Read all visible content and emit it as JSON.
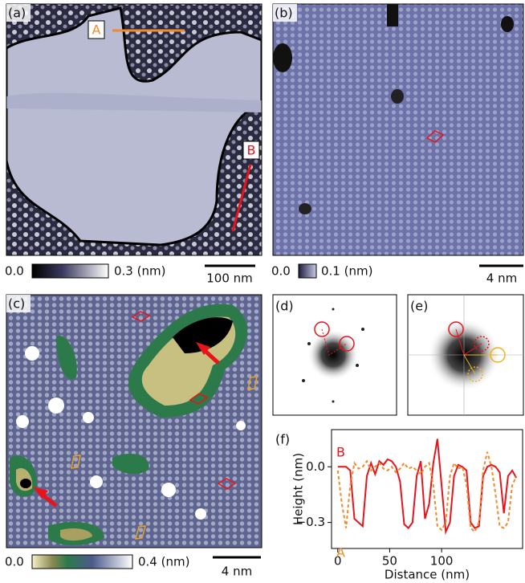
{
  "panels": {
    "a": {
      "label": "(a)",
      "line_a": "A",
      "line_b": "B",
      "colorbar_min": "0.0",
      "colorbar_max": "0.3 (nm)",
      "scale_bar": "100 nm"
    },
    "b": {
      "label": "(b)",
      "colorbar_min": "0.0",
      "colorbar_max": "0.1 (nm)",
      "scale_bar": "4 nm"
    },
    "c": {
      "label": "(c)",
      "colorbar_min": "0.0",
      "colorbar_max": "0.4 (nm)",
      "scale_bar": "4 nm"
    },
    "d": {
      "label": "(d)"
    },
    "e": {
      "label": "(e)"
    }
  },
  "chart_data": {
    "type": "line",
    "label": "(f)",
    "xlabel": "Distance (nm)",
    "ylabel": "Height (nm)",
    "xlim": [
      -6,
      178
    ],
    "ylim": [
      -0.44,
      0.2
    ],
    "xticks": [
      0,
      50,
      100
    ],
    "yticks": [
      {
        "value": 0,
        "label": "0.0"
      },
      {
        "value": -0.3,
        "label": "−0.3"
      }
    ],
    "x": [
      0,
      4,
      8,
      12,
      16,
      20,
      24,
      28,
      32,
      36,
      40,
      44,
      48,
      52,
      56,
      60,
      64,
      68,
      72,
      76,
      80,
      84,
      88,
      92,
      96,
      100,
      104,
      108,
      112,
      116,
      120,
      124,
      128,
      132,
      136,
      140,
      144,
      148,
      152,
      156,
      160,
      164,
      168,
      172
    ],
    "series": [
      {
        "name": "B",
        "color": "#e8141c",
        "linestyle": "solid",
        "values": [
          0.0,
          0.0,
          0.0,
          -0.02,
          -0.28,
          -0.3,
          -0.32,
          -0.05,
          0.02,
          -0.04,
          0.03,
          0.01,
          0.04,
          0.03,
          0.0,
          -0.08,
          -0.31,
          -0.33,
          -0.3,
          -0.05,
          0.03,
          -0.28,
          -0.2,
          0.02,
          0.15,
          -0.1,
          -0.35,
          -0.3,
          -0.05,
          0.01,
          0.0,
          -0.02,
          -0.3,
          -0.33,
          -0.32,
          -0.05,
          0.0,
          0.01,
          0.0,
          -0.03,
          -0.25,
          -0.05,
          -0.02,
          -0.06
        ]
      },
      {
        "name": "A",
        "color": "#f08a2c",
        "linestyle": "dashed",
        "values": [
          -0.02,
          -0.2,
          -0.33,
          -0.1,
          0.02,
          -0.01,
          0.0,
          0.03,
          -0.02,
          0.0,
          0.02,
          -0.01,
          -0.02,
          0.0,
          -0.03,
          -0.01,
          0.02,
          -0.01,
          0.0,
          -0.02,
          -0.04,
          0.0,
          0.02,
          -0.1,
          -0.32,
          -0.34,
          -0.3,
          -0.05,
          0.02,
          -0.01,
          0.0,
          -0.1,
          -0.33,
          -0.35,
          -0.3,
          -0.02,
          0.08,
          0.0,
          -0.15,
          -0.32,
          -0.33,
          -0.3,
          -0.1,
          -0.05
        ]
      }
    ]
  }
}
